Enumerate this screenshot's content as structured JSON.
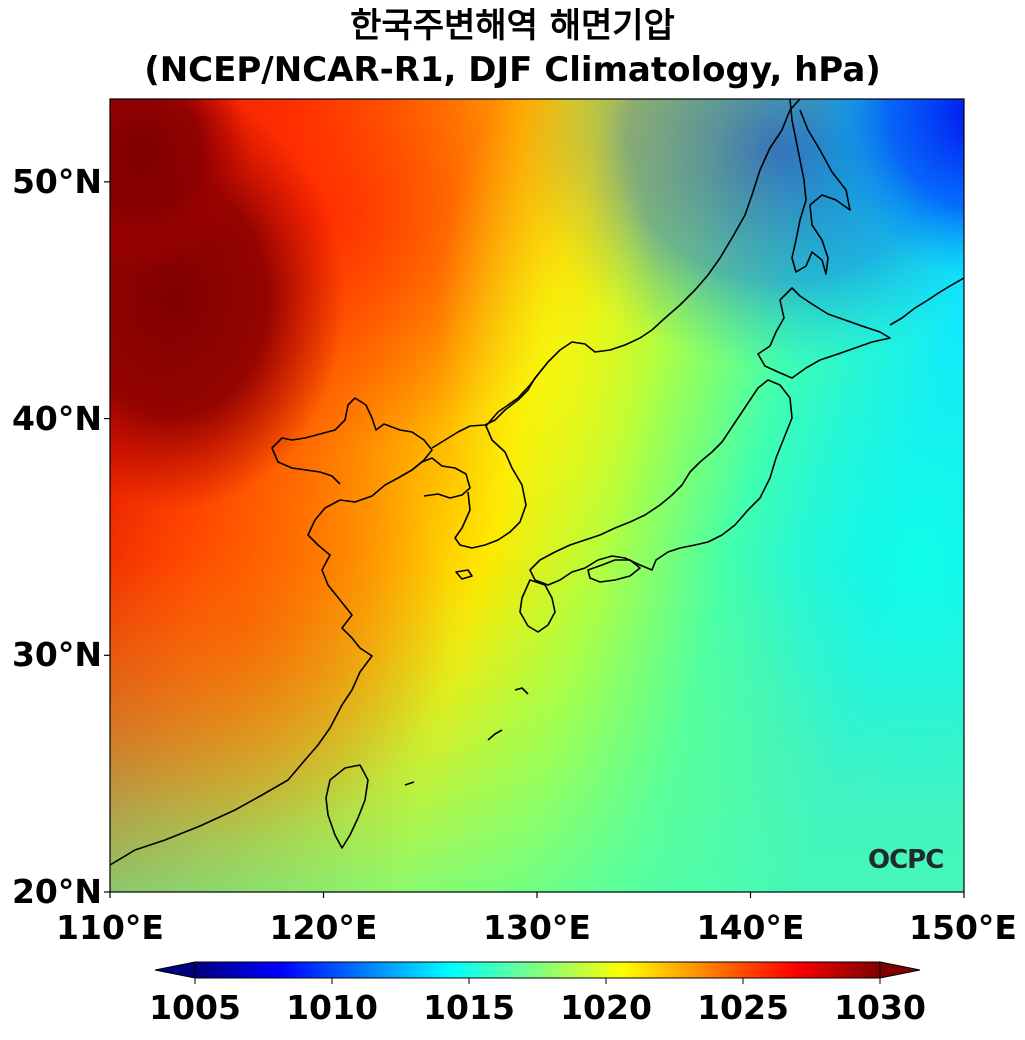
{
  "title": {
    "line1": "한국주변해역 해면기압",
    "line2": "(NCEP/NCAR-R1, DJF Climatology, hPa)"
  },
  "map": {
    "projection": "PlateCarree",
    "lon_range": [
      110,
      150
    ],
    "lat_range": [
      20,
      53.5
    ],
    "lon_ticks": [
      {
        "value": 110,
        "label": "110°E"
      },
      {
        "value": 120,
        "label": "120°E"
      },
      {
        "value": 130,
        "label": "130°E"
      },
      {
        "value": 140,
        "label": "140°E"
      },
      {
        "value": 150,
        "label": "150°E"
      }
    ],
    "lat_ticks": [
      {
        "value": 20,
        "label": "20°N"
      },
      {
        "value": 30,
        "label": "30°N"
      },
      {
        "value": 40,
        "label": "40°N"
      },
      {
        "value": 50,
        "label": "50°N"
      }
    ],
    "field": "sea level pressure (hPa)",
    "colormap": "jet",
    "coastline_color": "#000000"
  },
  "colorbar": {
    "min": 1005,
    "max": 1030,
    "extend": "both",
    "ticks": [
      {
        "value": 1005,
        "label": "1005"
      },
      {
        "value": 1010,
        "label": "1010"
      },
      {
        "value": 1015,
        "label": "1015"
      },
      {
        "value": 1020,
        "label": "1020"
      },
      {
        "value": 1025,
        "label": "1025"
      },
      {
        "value": 1030,
        "label": "1030"
      }
    ],
    "colors": [
      "#00007f",
      "#0000ff",
      "#007fff",
      "#00ffff",
      "#7fff7f",
      "#ffff00",
      "#ff7f00",
      "#ff0000",
      "#7f0000"
    ]
  },
  "watermark": {
    "text": "OCPC"
  }
}
